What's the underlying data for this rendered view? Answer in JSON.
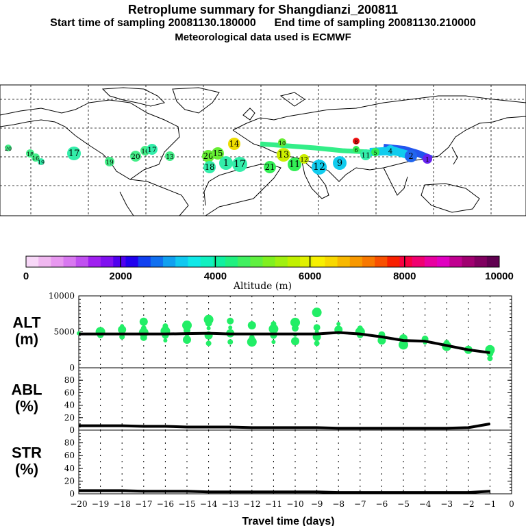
{
  "header": {
    "title": "Retroplume summary for Shangdianzi_200811",
    "start_label": "Start time of sampling 20081130.180000",
    "end_label": "End time of sampling 20081130.210000",
    "met_label": "Meteorological data used is ECMWF"
  },
  "colors": {
    "line": "#000000",
    "points": "#22ee66",
    "grid": "#000000"
  },
  "map": {
    "labels": [
      {
        "t": "20",
        "c": "#44ee88"
      },
      {
        "t": "18",
        "c": "#44ee88"
      },
      {
        "t": "16",
        "c": "#44ee88"
      },
      {
        "t": "19",
        "c": "#33eeaa"
      },
      {
        "t": "17",
        "c": "#33eeaa"
      },
      {
        "t": "19",
        "c": "#44ee88"
      },
      {
        "t": "20",
        "c": "#44ee88"
      },
      {
        "t": "16",
        "c": "#44ee88"
      },
      {
        "t": "17",
        "c": "#33eeaa"
      },
      {
        "t": "13",
        "c": "#44ee88"
      },
      {
        "t": "14",
        "c": "#eedd00"
      },
      {
        "t": "20",
        "c": "#66ee33"
      },
      {
        "t": "15",
        "c": "#66ee33"
      },
      {
        "t": "18",
        "c": "#33eeaa"
      },
      {
        "t": "1",
        "c": "#33eeaa"
      },
      {
        "t": "17",
        "c": "#33eeaa"
      },
      {
        "t": "21",
        "c": "#33ee55"
      },
      {
        "t": "13",
        "c": "#ccee00"
      },
      {
        "t": "11",
        "c": "#33ee55"
      },
      {
        "t": "12",
        "c": "#11ccee"
      },
      {
        "t": "9",
        "c": "#11ccee"
      },
      {
        "t": "6",
        "c": "#33ee55"
      },
      {
        "t": "11",
        "c": "#33eeaa"
      },
      {
        "t": "5",
        "c": "#33ee55"
      },
      {
        "t": "4",
        "c": "#11ccee"
      },
      {
        "t": "2",
        "c": "#2266ee"
      },
      {
        "t": "1",
        "c": "#6622ee"
      },
      {
        "t": "8",
        "c": "#ee1111"
      },
      {
        "t": "10",
        "c": "#66ee33"
      },
      {
        "t": "12",
        "c": "#ccee00"
      }
    ]
  },
  "colorbar": {
    "ticks": [
      "0",
      "2000",
      "4000",
      "6000",
      "8000",
      "10000"
    ],
    "title": "Altitude (m)",
    "colors": [
      "#f8d8f8",
      "#f0b8f0",
      "#e898f0",
      "#d878f0",
      "#c050f0",
      "#a020f0",
      "#8010f0",
      "#5000ee",
      "#2000ee",
      "#1040f0",
      "#1070f0",
      "#10a0f0",
      "#10c8f0",
      "#10e8e8",
      "#10f0c0",
      "#10f0a0",
      "#20f080",
      "#40f060",
      "#60f040",
      "#80f020",
      "#a0f010",
      "#c0f000",
      "#e0f000",
      "#f8f000",
      "#f8d800",
      "#f8b800",
      "#f89800",
      "#f87800",
      "#f85000",
      "#f82000",
      "#f80040",
      "#f00070",
      "#e800a0",
      "#e000c0",
      "#c00090",
      "#a00070",
      "#800060",
      "#600050"
    ]
  },
  "chart_data": [
    {
      "type": "line",
      "name": "ALT",
      "ylabel": "ALT\n(m)",
      "ylabel_top": "ALT",
      "ylabel_unit": "(m)",
      "ylim": [
        0,
        10000
      ],
      "yticks": [
        "0",
        "5000",
        "10000"
      ],
      "x": [
        -20,
        -19,
        -18,
        -17,
        -16,
        -15,
        -14,
        -13,
        -12,
        -11,
        -10,
        -9,
        -8,
        -7,
        -6,
        -5,
        -4,
        -3,
        -2,
        -1
      ],
      "values": [
        4700,
        4700,
        4700,
        4700,
        4700,
        4750,
        4800,
        4700,
        4700,
        4700,
        4700,
        4700,
        4900,
        4700,
        4300,
        3800,
        3700,
        3100,
        2500,
        2100
      ],
      "scatter": [
        [
          -20,
          4800
        ],
        [
          -19,
          4600
        ],
        [
          -19,
          5000
        ],
        [
          -18,
          4300
        ],
        [
          -18,
          5300
        ],
        [
          -18,
          5800
        ],
        [
          -17,
          4200
        ],
        [
          -17,
          4900
        ],
        [
          -17,
          5500
        ],
        [
          -17,
          6400
        ],
        [
          -16,
          3800
        ],
        [
          -16,
          4500
        ],
        [
          -16,
          5100
        ],
        [
          -16,
          5800
        ],
        [
          -15,
          3900
        ],
        [
          -15,
          4600
        ],
        [
          -15,
          5200
        ],
        [
          -15,
          5900
        ],
        [
          -14,
          3400
        ],
        [
          -14,
          4500
        ],
        [
          -14,
          5500
        ],
        [
          -14,
          6200
        ],
        [
          -14,
          6700
        ],
        [
          -13,
          3600
        ],
        [
          -13,
          4800
        ],
        [
          -13,
          5600
        ],
        [
          -13,
          6500
        ],
        [
          -12,
          3600
        ],
        [
          -12,
          4200
        ],
        [
          -12,
          5900
        ],
        [
          -11,
          3600
        ],
        [
          -11,
          4500
        ],
        [
          -11,
          5400
        ],
        [
          -11,
          6100
        ],
        [
          -10,
          3700
        ],
        [
          -10,
          4600
        ],
        [
          -10,
          5500
        ],
        [
          -10,
          6300
        ],
        [
          -9,
          3400
        ],
        [
          -9,
          4300
        ],
        [
          -9,
          5000
        ],
        [
          -9,
          5600
        ],
        [
          -9,
          7700
        ],
        [
          -8,
          5000
        ],
        [
          -8,
          5300
        ],
        [
          -8,
          6100
        ],
        [
          -7,
          4600
        ],
        [
          -7,
          5000
        ],
        [
          -7,
          5500
        ],
        [
          -6,
          3800
        ],
        [
          -6,
          4300
        ],
        [
          -6,
          4600
        ],
        [
          -5,
          3200
        ],
        [
          -5,
          3700
        ],
        [
          -5,
          4100
        ],
        [
          -4,
          3500
        ],
        [
          -4,
          4000
        ],
        [
          -3,
          3000
        ],
        [
          -3,
          3500
        ],
        [
          -2,
          2500
        ],
        [
          -2,
          2800
        ],
        [
          -1,
          2000
        ],
        [
          -1,
          2500
        ],
        [
          -1,
          1300
        ]
      ]
    },
    {
      "type": "line",
      "name": "ABL",
      "ylabel_top": "ABL",
      "ylabel_unit": "(%)",
      "ylim": [
        0,
        100
      ],
      "yticks": [
        "0",
        "20",
        "40",
        "60",
        "80"
      ],
      "x": [
        -20,
        -19,
        -18,
        -17,
        -16,
        -15,
        -14,
        -13,
        -12,
        -11,
        -10,
        -9,
        -8,
        -7,
        -6,
        -5,
        -4,
        -3,
        -2,
        -1
      ],
      "values": [
        7,
        7,
        7,
        6,
        6,
        5,
        5,
        5,
        4,
        4,
        4,
        4,
        3,
        3,
        3,
        3,
        3,
        3,
        4,
        10
      ]
    },
    {
      "type": "line",
      "name": "STR",
      "ylabel_top": "STR",
      "ylabel_unit": "(%)",
      "ylim": [
        0,
        100
      ],
      "yticks": [
        "0",
        "20",
        "40",
        "60",
        "80"
      ],
      "x": [
        -20,
        -19,
        -18,
        -17,
        -16,
        -15,
        -14,
        -13,
        -12,
        -11,
        -10,
        -9,
        -8,
        -7,
        -6,
        -5,
        -4,
        -3,
        -2,
        -1
      ],
      "values": [
        5,
        5,
        5,
        4,
        4,
        4,
        3,
        3,
        3,
        3,
        3,
        3,
        2,
        2,
        2,
        2,
        2,
        2,
        2,
        4
      ],
      "xlabel": "Travel time (days)",
      "xticks": [
        "-20",
        "-19",
        "-18",
        "-17",
        "-16",
        "-15",
        "-14",
        "-13",
        "-12",
        "-11",
        "-10",
        "-9",
        "-8",
        "-7",
        "-6",
        "-5",
        "-4",
        "-3",
        "-2",
        "-1",
        "0"
      ]
    }
  ]
}
